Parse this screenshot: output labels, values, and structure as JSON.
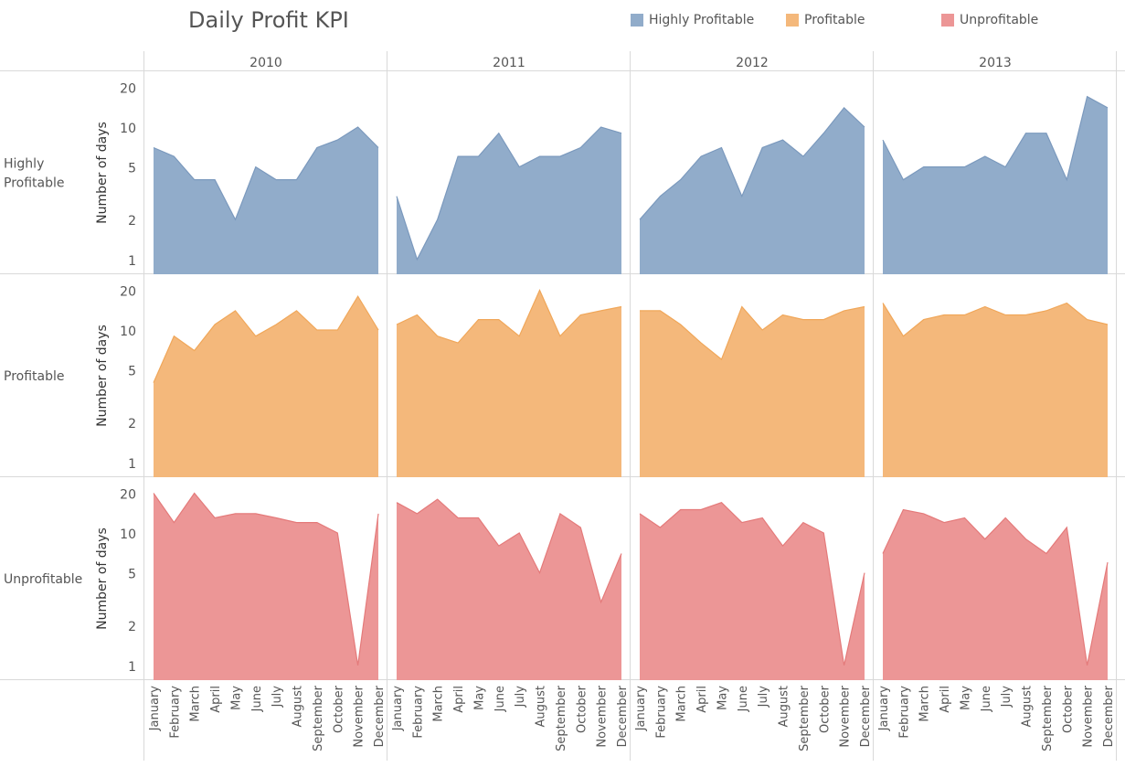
{
  "chart_data": {
    "type": "area",
    "title": "Daily Profit KPI",
    "ylabel": "Number of days",
    "yscale": "log",
    "ylim": [
      0.85,
      24
    ],
    "yticks": [
      1,
      2,
      5,
      10,
      20
    ],
    "years": [
      "2010",
      "2011",
      "2012",
      "2013"
    ],
    "months": [
      "January",
      "February",
      "March",
      "April",
      "May",
      "June",
      "July",
      "August",
      "September",
      "October",
      "November",
      "December"
    ],
    "legend_placement": "top-right",
    "rows": [
      {
        "name": "Highly Profitable",
        "row_label": [
          "Highly",
          "Profitable"
        ],
        "color": "#91acca",
        "line_color": "#7b99bd",
        "values": {
          "2010": [
            7,
            6,
            4,
            4,
            2,
            5,
            4,
            4,
            7,
            8,
            10,
            7
          ],
          "2011": [
            3,
            1,
            2,
            6,
            6,
            9,
            5,
            6,
            6,
            7,
            10,
            9
          ],
          "2012": [
            2,
            3,
            4,
            6,
            7,
            3,
            7,
            8,
            6,
            9,
            14,
            10
          ],
          "2013": [
            8,
            4,
            5,
            5,
            5,
            6,
            5,
            9,
            9,
            4,
            17,
            14
          ]
        }
      },
      {
        "name": "Profitable",
        "row_label": [
          "Profitable"
        ],
        "color": "#f4b87b",
        "line_color": "#f0a75a",
        "values": {
          "2010": [
            4,
            9,
            7,
            11,
            14,
            9,
            11,
            14,
            10,
            10,
            18,
            10
          ],
          "2011": [
            11,
            13,
            9,
            8,
            12,
            12,
            9,
            20,
            9,
            13,
            14,
            15
          ],
          "2012": [
            14,
            14,
            11,
            8,
            6,
            15,
            10,
            13,
            12,
            12,
            14,
            15
          ],
          "2013": [
            16,
            9,
            12,
            13,
            13,
            15,
            13,
            13,
            14,
            16,
            12,
            11
          ]
        }
      },
      {
        "name": "Unprofitable",
        "row_label": [
          "Unprofitable"
        ],
        "color": "#ec9696",
        "line_color": "#e47a7a",
        "values": {
          "2010": [
            20,
            12,
            20,
            13,
            14,
            14,
            13,
            12,
            12,
            10,
            1,
            14
          ],
          "2011": [
            17,
            14,
            18,
            13,
            13,
            8,
            10,
            5,
            14,
            11,
            3,
            7
          ],
          "2012": [
            14,
            11,
            15,
            15,
            17,
            12,
            13,
            8,
            12,
            10,
            1,
            5
          ],
          "2013": [
            7,
            15,
            14,
            12,
            13,
            9,
            13,
            9,
            7,
            11,
            1,
            6
          ]
        }
      }
    ]
  }
}
